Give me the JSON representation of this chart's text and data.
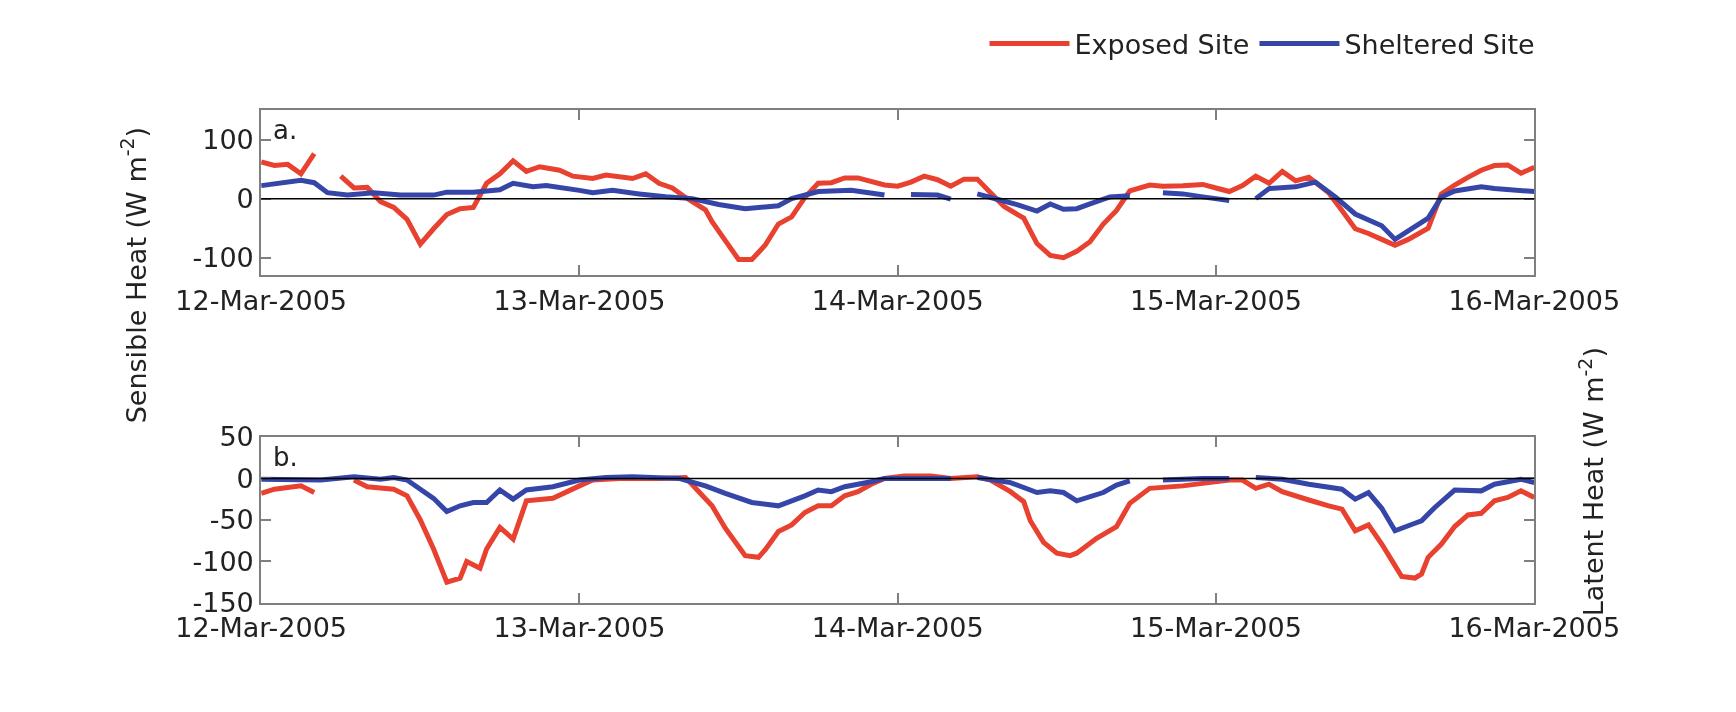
{
  "chart_data": [
    {
      "type": "line",
      "ylabel": "Sensible Heat (W m$^{-2}$)",
      "annotations": [
        "a."
      ],
      "legend": "top right",
      "marker": "none",
      "line_style": "solid",
      "xlim": [
        "2005-03-12",
        "2005-03-16"
      ],
      "xticks": [
        {
          "value": "2005-03-12",
          "label": "12-Mar-2005"
        },
        {
          "value": "2005-03-13",
          "label": "13-Mar-2005"
        },
        {
          "value": "2005-03-14",
          "label": "14-Mar-2005"
        },
        {
          "value": "2005-03-15",
          "label": "15-Mar-2005"
        },
        {
          "value": "2005-03-16",
          "label": "16-Mar-2005"
        }
      ],
      "ylim": [
        -130,
        150
      ],
      "yticks": [
        -100,
        0,
        100
      ],
      "ref_lines": [
        {
          "axis": "y",
          "value": 0,
          "color": "#000000"
        }
      ],
      "series": [
        {
          "name": "Exposed Site",
          "color": "#e8412f",
          "x": [
            "2005-03-12T00:00",
            "2005-03-12T01:00",
            "2005-03-12T02:00",
            "2005-03-12T03:00",
            "2005-03-12T04:00",
            "2005-03-12T05:00",
            "2005-03-12T06:00",
            "2005-03-12T07:00",
            "2005-03-12T08:00",
            "2005-03-12T09:00",
            "2005-03-12T10:00",
            "2005-03-12T11:00",
            "2005-03-12T12:00",
            "2005-03-12T13:00",
            "2005-03-12T14:00",
            "2005-03-12T15:00",
            "2005-03-12T16:00",
            "2005-03-12T17:00",
            "2005-03-12T18:00",
            "2005-03-12T19:00",
            "2005-03-12T20:00",
            "2005-03-12T21:00",
            "2005-03-12T22:30",
            "2005-03-12T23:30",
            "2005-03-13T01:00",
            "2005-03-13T02:00",
            "2005-03-13T04:00",
            "2005-03-13T05:00",
            "2005-03-13T06:00",
            "2005-03-13T07:00",
            "2005-03-13T08:00",
            "2005-03-13T09:30",
            "2005-03-13T10:00",
            "2005-03-13T11:00",
            "2005-03-13T12:00",
            "2005-03-13T13:00",
            "2005-03-13T14:00",
            "2005-03-13T15:00",
            "2005-03-13T16:00",
            "2005-03-13T17:00",
            "2005-03-13T18:00",
            "2005-03-13T19:00",
            "2005-03-13T20:00",
            "2005-03-13T21:00",
            "2005-03-13T23:00",
            "2005-03-14T00:00",
            "2005-03-14T01:00",
            "2005-03-14T02:00",
            "2005-03-14T03:00",
            "2005-03-14T04:00",
            "2005-03-14T05:00",
            "2005-03-14T06:00",
            "2005-03-14T07:00",
            "2005-03-14T08:00",
            "2005-03-14T09:30",
            "2005-03-14T10:30",
            "2005-03-14T11:30",
            "2005-03-14T12:30",
            "2005-03-14T13:30",
            "2005-03-14T14:30",
            "2005-03-14T15:30",
            "2005-03-14T16:30",
            "2005-03-14T17:30",
            "2005-03-14T19:00",
            "2005-03-14T20:00",
            "2005-03-14T21:30",
            "2005-03-14T23:00",
            "2005-03-15T00:00",
            "2005-03-15T01:00",
            "2005-03-15T02:00",
            "2005-03-15T03:00",
            "2005-03-15T04:00",
            "2005-03-15T05:00",
            "2005-03-15T06:00",
            "2005-03-15T07:00",
            "2005-03-15T08:30",
            "2005-03-15T09:30",
            "2005-03-15T10:30",
            "2005-03-15T11:30",
            "2005-03-15T12:30",
            "2005-03-15T13:30",
            "2005-03-15T14:30",
            "2005-03-15T16:00",
            "2005-03-15T17:00",
            "2005-03-15T18:00",
            "2005-03-15T19:00",
            "2005-03-15T20:00",
            "2005-03-15T21:00",
            "2005-03-15T22:00",
            "2005-03-15T23:00",
            "2005-03-16T00:00"
          ],
          "values": [
            62,
            56,
            58,
            42,
            76,
            null,
            38,
            18,
            19,
            -5,
            -15,
            -35,
            -77,
            -51,
            -27,
            -17,
            -15,
            26,
            42,
            64,
            46,
            54,
            48,
            38,
            34,
            40,
            34,
            42,
            26,
            18,
            2,
            -19,
            -39,
            -71,
            -103,
            -103,
            -79,
            -43,
            -31,
            2,
            26,
            27,
            35,
            35,
            23,
            21,
            28,
            38,
            32,
            21,
            33,
            33,
            10,
            -13,
            -33,
            -76,
            -96,
            -100,
            -89,
            -73,
            -43,
            -20,
            13,
            23,
            21,
            22,
            24,
            18,
            12,
            22,
            38,
            26,
            46,
            30,
            36,
            10,
            -20,
            -51,
            -59,
            -69,
            -79,
            -69,
            -50,
            8,
            23,
            36,
            48,
            56,
            57,
            43,
            53
          ]
        },
        {
          "name": "Sheltered Site",
          "color": "#3646a8",
          "x": [
            "2005-03-12T00:00",
            "2005-03-12T03:00",
            "2005-03-12T04:00",
            "2005-03-12T05:00",
            "2005-03-12T06:30",
            "2005-03-12T08:30",
            "2005-03-12T10:30",
            "2005-03-12T13:00",
            "2005-03-12T14:00",
            "2005-03-12T16:00",
            "2005-03-12T18:00",
            "2005-03-12T19:00",
            "2005-03-12T20:30",
            "2005-03-12T21:30",
            "2005-03-13T00:00",
            "2005-03-13T01:00",
            "2005-03-13T02:30",
            "2005-03-13T04:30",
            "2005-03-13T06:30",
            "2005-03-13T08:30",
            "2005-03-13T10:30",
            "2005-03-13T12:30",
            "2005-03-13T15:00",
            "2005-03-13T16:00",
            "2005-03-13T18:00",
            "2005-03-13T20:30",
            "2005-03-13T23:00",
            "2005-03-14T00:00",
            "2005-03-14T01:00",
            "2005-03-14T03:00",
            "2005-03-14T04:00",
            "2005-03-14T05:00",
            "2005-03-14T06:00",
            "2005-03-14T07:30",
            "2005-03-14T09:00",
            "2005-03-14T10:30",
            "2005-03-14T11:30",
            "2005-03-14T12:30",
            "2005-03-14T13:30",
            "2005-03-14T14:30",
            "2005-03-14T16:00",
            "2005-03-14T17:30",
            "2005-03-14T18:30",
            "2005-03-14T20:00",
            "2005-03-14T21:30",
            "2005-03-14T23:00",
            "2005-03-15T01:00",
            "2005-03-15T02:00",
            "2005-03-15T03:00",
            "2005-03-15T04:00",
            "2005-03-15T06:00",
            "2005-03-15T07:30",
            "2005-03-15T09:00",
            "2005-03-15T10:30",
            "2005-03-15T12:30",
            "2005-03-15T13:30",
            "2005-03-15T16:00",
            "2005-03-15T17:00",
            "2005-03-15T18:00",
            "2005-03-15T20:00",
            "2005-03-15T21:00",
            "2005-03-16T00:00"
          ],
          "values": [
            22,
            31,
            27,
            10,
            6,
            10,
            6,
            6,
            11,
            11,
            15,
            26,
            20,
            22,
            14,
            10,
            14,
            8,
            3,
            0,
            -10,
            -17,
            -12,
            0,
            12,
            14,
            6,
            null,
            7,
            6,
            -1,
            null,
            8,
            -1,
            -10,
            -21,
            -9,
            -18,
            -17,
            -9,
            3,
            5,
            null,
            10,
            8,
            3,
            -3,
            null,
            0,
            17,
            20,
            28,
            3,
            -26,
            -46,
            -69,
            -33,
            3,
            13,
            20,
            17,
            12
          ]
        }
      ]
    },
    {
      "type": "line",
      "ylabel": "Latent Heat (W m$^{-2}$)",
      "annotations": [
        "b."
      ],
      "legend": false,
      "marker": "none",
      "line_style": "solid",
      "xlim": [
        "2005-03-12",
        "2005-03-16"
      ],
      "xticks": [
        {
          "value": "2005-03-12",
          "label": "12-Mar-2005"
        },
        {
          "value": "2005-03-13",
          "label": "13-Mar-2005"
        },
        {
          "value": "2005-03-14",
          "label": "14-Mar-2005"
        },
        {
          "value": "2005-03-15",
          "label": "15-Mar-2005"
        },
        {
          "value": "2005-03-16",
          "label": "16-Mar-2005"
        }
      ],
      "ylim": [
        -150,
        50
      ],
      "yticks": [
        -150,
        -100,
        -50,
        0,
        50
      ],
      "ref_lines": [
        {
          "axis": "y",
          "value": 0,
          "color": "#000000"
        }
      ],
      "series": [
        {
          "color": "#e8412f",
          "x": [
            "2005-03-12T00:00",
            "2005-03-12T01:00",
            "2005-03-12T02:00",
            "2005-03-12T03:00",
            "2005-03-12T04:00",
            "2005-03-12T05:00",
            "2005-03-12T07:00",
            "2005-03-12T08:00",
            "2005-03-12T10:00",
            "2005-03-12T11:00",
            "2005-03-12T12:00",
            "2005-03-12T13:00",
            "2005-03-12T13:30",
            "2005-03-12T14:00",
            "2005-03-12T15:00",
            "2005-03-12T15:30",
            "2005-03-12T16:30",
            "2005-03-12T17:00",
            "2005-03-12T18:00",
            "2005-03-12T19:00",
            "2005-03-12T20:00",
            "2005-03-12T22:00",
            "2005-03-13T00:00",
            "2005-03-13T01:00",
            "2005-03-13T03:00",
            "2005-03-13T06:00",
            "2005-03-13T08:00",
            "2005-03-13T10:00",
            "2005-03-13T11:00",
            "2005-03-13T12:00",
            "2005-03-13T12:30",
            "2005-03-13T13:30",
            "2005-03-13T14:00",
            "2005-03-13T15:00",
            "2005-03-13T16:00",
            "2005-03-13T17:00",
            "2005-03-13T18:00",
            "2005-03-13T19:00",
            "2005-03-13T20:00",
            "2005-03-13T21:00",
            "2005-03-13T22:00",
            "2005-03-13T23:00",
            "2005-03-14T00:30",
            "2005-03-14T02:30",
            "2005-03-14T04:00",
            "2005-03-14T06:00",
            "2005-03-14T07:00",
            "2005-03-14T08:30",
            "2005-03-14T09:30",
            "2005-03-14T10:00",
            "2005-03-14T11:00",
            "2005-03-14T12:00",
            "2005-03-14T13:00",
            "2005-03-14T13:30",
            "2005-03-14T15:00",
            "2005-03-14T16:30",
            "2005-03-14T17:30",
            "2005-03-14T19:00",
            "2005-03-14T21:30",
            "2005-03-14T23:00",
            "2005-03-15T01:00",
            "2005-03-15T02:00",
            "2005-03-15T03:00",
            "2005-03-15T04:00",
            "2005-03-15T05:00",
            "2005-03-15T07:00",
            "2005-03-15T08:30",
            "2005-03-15T09:30",
            "2005-03-15T10:30",
            "2005-03-15T11:30",
            "2005-03-15T12:30",
            "2005-03-15T13:30",
            "2005-03-15T14:00",
            "2005-03-15T15:00",
            "2005-03-15T15:30",
            "2005-03-15T16:00",
            "2005-03-15T17:00",
            "2005-03-15T18:00",
            "2005-03-15T19:00",
            "2005-03-15T20:00",
            "2005-03-15T21:00",
            "2005-03-15T22:00",
            "2005-03-15T23:00",
            "2005-03-16T00:00"
          ],
          "values": [
            -18,
            -13,
            -11,
            -9,
            -17,
            null,
            -2,
            -10,
            -13,
            -21,
            -50,
            -85,
            -105,
            -125,
            -120,
            -100,
            -108,
            -85,
            -59,
            -73,
            -27,
            -24,
            -9,
            -2,
            0,
            0,
            1,
            -33,
            -60,
            -82,
            -93,
            -95,
            -86,
            -64,
            -56,
            -41,
            -33,
            -33,
            -21,
            -16,
            -7,
            0,
            3,
            3,
            0,
            2,
            -2,
            -16,
            -28,
            -51,
            -77,
            -90,
            -93,
            -90,
            -72,
            -58,
            -30,
            -12,
            -9,
            -6,
            -2,
            -2,
            -12,
            -7,
            -16,
            -26,
            -33,
            -37,
            -63,
            -56,
            -79,
            -105,
            -118,
            -120,
            -115,
            -95,
            -79,
            -58,
            -44,
            -42,
            -27,
            -23,
            -15,
            -23
          ]
        },
        {
          "color": "#3646a8",
          "x": [
            "2005-03-12T00:00",
            "2005-03-12T04:30",
            "2005-03-12T07:00",
            "2005-03-12T09:00",
            "2005-03-12T10:00",
            "2005-03-12T11:00",
            "2005-03-12T13:00",
            "2005-03-12T14:00",
            "2005-03-12T15:00",
            "2005-03-12T16:00",
            "2005-03-12T17:00",
            "2005-03-12T18:00",
            "2005-03-12T19:00",
            "2005-03-12T20:00",
            "2005-03-12T22:00",
            "2005-03-13T00:00",
            "2005-03-13T02:00",
            "2005-03-13T04:00",
            "2005-03-13T07:30",
            "2005-03-13T09:30",
            "2005-03-13T11:00",
            "2005-03-13T13:00",
            "2005-03-13T15:00",
            "2005-03-13T17:00",
            "2005-03-13T18:00",
            "2005-03-13T19:00",
            "2005-03-13T20:00",
            "2005-03-13T22:00",
            "2005-03-13T23:00",
            "2005-03-14T02:30",
            "2005-03-14T04:00",
            "2005-03-14T05:00",
            "2005-03-14T06:00",
            "2005-03-14T08:30",
            "2005-03-14T10:30",
            "2005-03-14T11:30",
            "2005-03-14T12:30",
            "2005-03-14T13:30",
            "2005-03-14T15:30",
            "2005-03-14T16:30",
            "2005-03-14T17:30",
            "2005-03-14T18:30",
            "2005-03-14T20:00",
            "2005-03-14T23:00",
            "2005-03-15T01:00",
            "2005-03-15T02:00",
            "2005-03-15T03:00",
            "2005-03-15T05:00",
            "2005-03-15T07:00",
            "2005-03-15T09:30",
            "2005-03-15T10:30",
            "2005-03-15T11:30",
            "2005-03-15T12:30",
            "2005-03-15T13:30",
            "2005-03-15T15:00",
            "2005-03-15T15:30",
            "2005-03-15T16:30",
            "2005-03-15T18:00",
            "2005-03-15T20:00",
            "2005-03-15T21:00",
            "2005-03-15T23:00",
            "2005-03-16T00:00"
          ],
          "values": [
            -1,
            -2,
            2,
            -1,
            1,
            -2,
            -24,
            -40,
            -33,
            -29,
            -29,
            -14,
            -25,
            -14,
            -10,
            -2,
            1,
            2,
            0,
            -9,
            -18,
            -29,
            -33,
            -21,
            -14,
            -16,
            -10,
            -4,
            0,
            0,
            0,
            null,
            1,
            -5,
            -17,
            -15,
            -17,
            -27,
            -17,
            -8,
            -3,
            null,
            -2,
            0,
            0,
            null,
            1,
            -1,
            -7,
            -13,
            -25,
            -17,
            -36,
            -63,
            -54,
            -51,
            -35,
            -14,
            -15,
            -7,
            -1,
            -5
          ]
        }
      ]
    }
  ]
}
